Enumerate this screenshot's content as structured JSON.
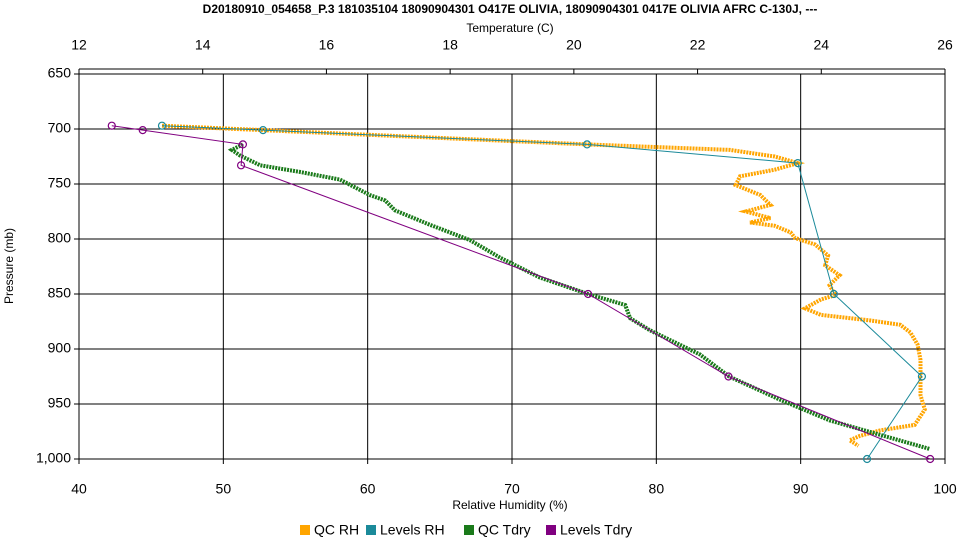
{
  "chart_data": {
    "type": "profile",
    "title": "D20180910_054658_P.3 181035104 18090904301 O417E OLIVIA, 18090904301 0417E OLIVIA AFRC C-130J, ---",
    "x_label": "Relative Humidity (%)",
    "x2_label": "Temperature (C)",
    "y_label": "Pressure (mb)",
    "xlim": [
      40,
      100
    ],
    "xticks": [
      40,
      50,
      60,
      70,
      80,
      90,
      100
    ],
    "x2lim": [
      12,
      26
    ],
    "x2ticks": [
      12,
      14,
      16,
      18,
      20,
      22,
      24,
      26
    ],
    "ylim": [
      1000,
      650
    ],
    "yticks": [
      650,
      700,
      750,
      800,
      850,
      900,
      950,
      {
        "value": 1000,
        "label": "1,000"
      }
    ],
    "grid": true,
    "legend": "bottom",
    "series": [
      {
        "name": "QC RH",
        "color": "#ffa500",
        "style": "dots",
        "x": [
          45.75,
          75.2,
          85.1,
          88.2,
          89.8,
          88.2,
          85.8,
          85.5,
          87.2,
          87.9,
          86.2,
          87.9,
          86.5,
          88.2,
          89.3,
          89.6,
          91.0,
          91.9,
          91.7,
          92.7,
          92.0,
          92.4,
          91.4,
          90.3,
          91.4,
          94.8,
          96.9,
          97.6,
          98.1,
          98.3,
          98.3,
          98.3,
          98.6,
          97.9,
          95.5,
          94.1,
          93.4,
          94.0
        ],
        "y": [
          697,
          714,
          719,
          725,
          731,
          737,
          743,
          751,
          760,
          769,
          775,
          781,
          785,
          788,
          794,
          799,
          805,
          815,
          824,
          833,
          842,
          851,
          855,
          863,
          869,
          874,
          878,
          885,
          896,
          910,
          928,
          942,
          955,
          969,
          974,
          979,
          983,
          988
        ]
      },
      {
        "name": "Levels RH",
        "color": "#1b8a9a",
        "style": "markers",
        "x": [
          45.75,
          52.75,
          75.2,
          89.8,
          92.3,
          98.4,
          94.6
        ],
        "y": [
          697,
          701,
          714,
          731,
          850,
          925,
          1000
        ]
      },
      {
        "name": "QC Tdry",
        "color": "#1a7a1a",
        "style": "dots",
        "axis": "x2",
        "x": [
          14.65,
          14.47,
          14.6,
          14.93,
          15.57,
          16.22,
          16.7,
          16.95,
          17.11,
          17.67,
          18.32,
          18.81,
          19.45,
          20.23,
          20.83,
          20.91,
          21.23,
          22.04,
          22.51,
          23.33,
          24.14,
          24.95,
          25.76
        ],
        "y": [
          714,
          719,
          724,
          733,
          739,
          746,
          760,
          765,
          774,
          787,
          801,
          817,
          835,
          850,
          860,
          872,
          883,
          905,
          925,
          946,
          965,
          978,
          991
        ]
      },
      {
        "name": "Levels Tdry",
        "color": "#800080",
        "style": "markers",
        "axis": "x2",
        "x": [
          12.53,
          13.03,
          14.65,
          14.62,
          20.23,
          22.5,
          25.76
        ],
        "y": [
          697,
          701,
          714,
          733,
          850,
          925,
          1000
        ]
      }
    ]
  }
}
